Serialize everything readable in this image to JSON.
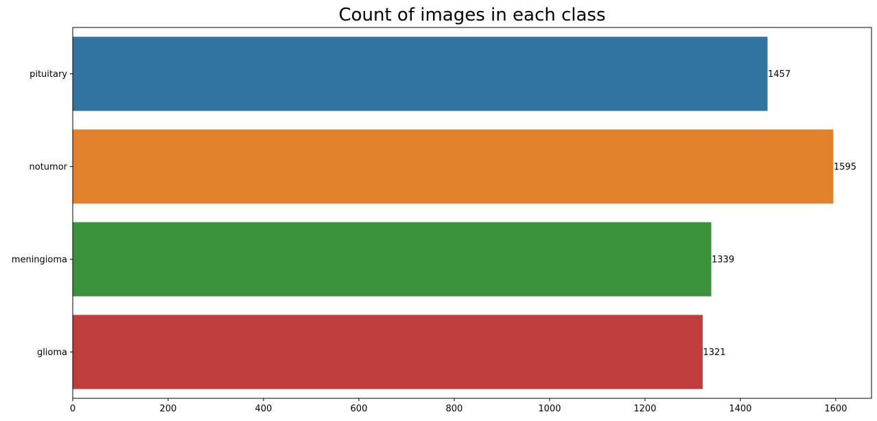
{
  "chart_data": {
    "type": "bar",
    "orientation": "horizontal",
    "title": "Count of images in each class",
    "xlabel": "",
    "ylabel": "",
    "categories": [
      "pituitary",
      "notumor",
      "meningioma",
      "glioma"
    ],
    "values": [
      1457,
      1595,
      1339,
      1321
    ],
    "data_labels": [
      "1457",
      "1595",
      "1339",
      "1321"
    ],
    "colors": [
      "#3274a1",
      "#e1812c",
      "#3a923a",
      "#c03d3e"
    ],
    "xlim": [
      0,
      1675
    ],
    "xticks": [
      0,
      200,
      400,
      600,
      800,
      1000,
      1200,
      1400,
      1600
    ],
    "xtick_labels": [
      "0",
      "200",
      "400",
      "600",
      "800",
      "1000",
      "1200",
      "1400",
      "1600"
    ],
    "grid": false,
    "legend": "none"
  }
}
